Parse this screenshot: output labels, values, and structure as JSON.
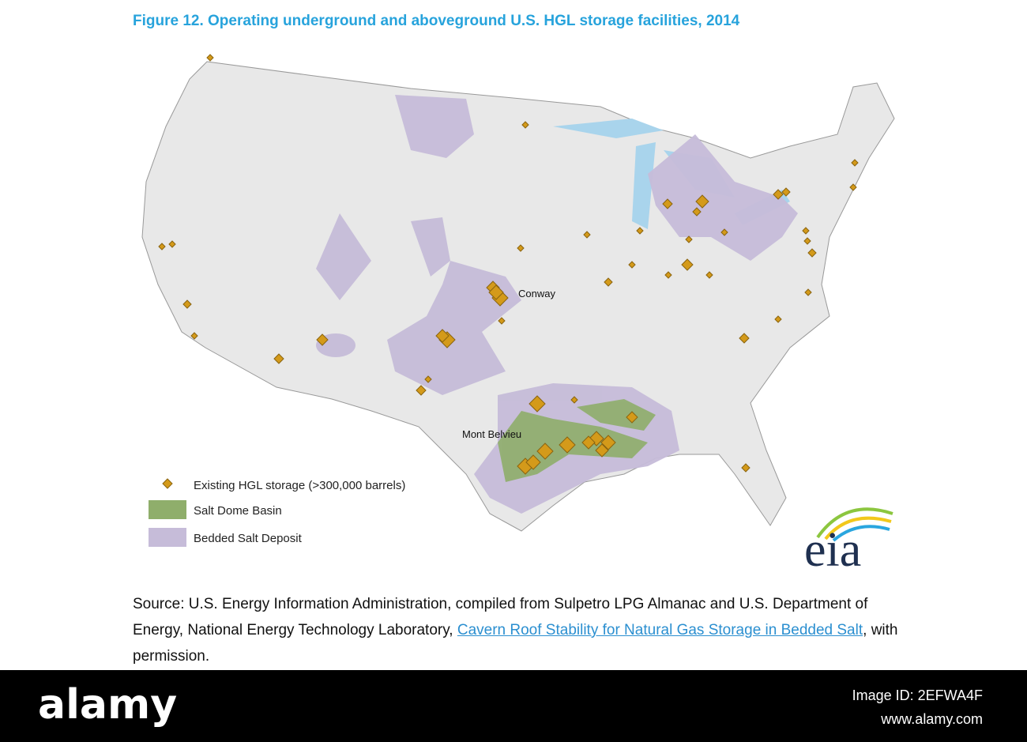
{
  "header": {
    "title": "Figure 12. Operating underground and aboveground U.S. HGL storage facilities, 2014"
  },
  "map": {
    "labels": [
      "Conway",
      "Mont Belvieu"
    ]
  },
  "legend": {
    "items": [
      "Existing HGL storage (>300,000 barrels)",
      "Salt Dome Basin",
      "Bedded Salt Deposit"
    ]
  },
  "logo": "eia",
  "source": {
    "line1": "Source: U.S. Energy Information Administration, compiled from Sulpetro LPG Almanac and U.S.",
    "line2": "Department of Energy, National Energy Technology Laboratory,",
    "link": "Cavern Roof Stability for Natural Gas Storage in Bedded Salt",
    "suffix": ", with permission."
  },
  "footer": {
    "brand": "alamy",
    "image_id": "Image ID: 2EFWA4F",
    "url": "www.alamy.com"
  }
}
